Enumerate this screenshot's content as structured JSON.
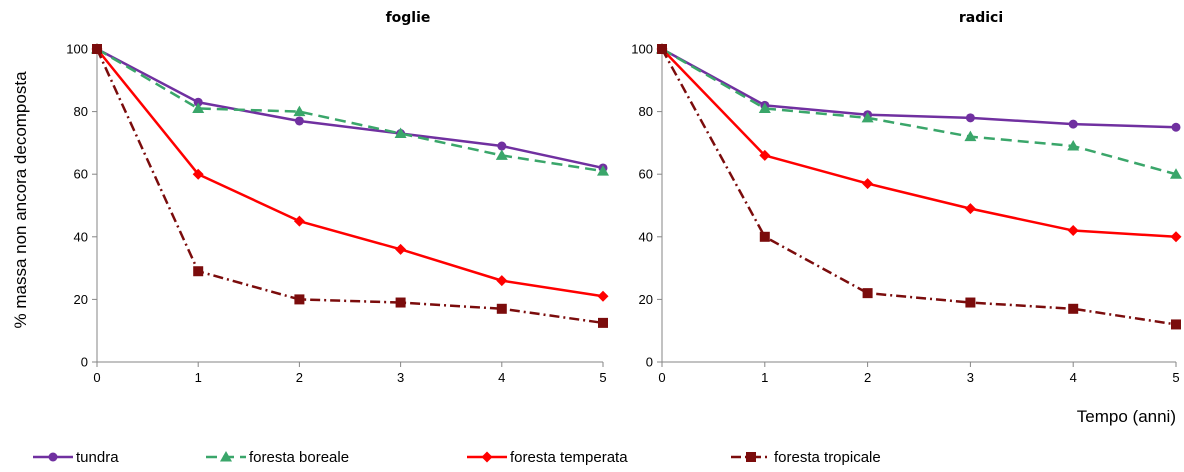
{
  "chart_data": {
    "type": "line",
    "ylabel": "% massa non ancora decomposta",
    "xlabel": "Tempo (anni)",
    "x": [
      0,
      1,
      2,
      3,
      4,
      5
    ],
    "xlim": [
      0,
      5
    ],
    "ylim": [
      0,
      100
    ],
    "y_ticks": [
      0,
      20,
      40,
      60,
      80,
      100
    ],
    "grid": false,
    "legend_position": "bottom",
    "series_styles": [
      {
        "name": "tundra",
        "color": "#7030a0",
        "marker": "circle",
        "dash": "solid"
      },
      {
        "name": "foresta boreale",
        "color": "#3aa66a",
        "marker": "triangle",
        "dash": "dashed"
      },
      {
        "name": "foresta temperata",
        "color": "#ff0000",
        "marker": "diamond",
        "dash": "solid"
      },
      {
        "name": "foresta tropicale",
        "color": "#7b0c0c",
        "marker": "square",
        "dash": "dashdot"
      }
    ],
    "panels": [
      {
        "title": "foglie",
        "series": [
          {
            "name": "tundra",
            "values": [
              100,
              83,
              77,
              73,
              69,
              62
            ]
          },
          {
            "name": "foresta boreale",
            "values": [
              100,
              81,
              80,
              73,
              66,
              61
            ]
          },
          {
            "name": "foresta temperata",
            "values": [
              100,
              60,
              45,
              36,
              26,
              21
            ]
          },
          {
            "name": "foresta tropicale",
            "values": [
              100,
              29,
              20,
              19,
              17,
              12.5
            ]
          }
        ]
      },
      {
        "title": "radici",
        "series": [
          {
            "name": "tundra",
            "values": [
              100,
              82,
              79,
              78,
              76,
              75
            ]
          },
          {
            "name": "foresta boreale",
            "values": [
              100,
              81,
              78,
              72,
              69,
              60
            ]
          },
          {
            "name": "foresta temperata",
            "values": [
              100,
              66,
              57,
              49,
              42,
              40
            ]
          },
          {
            "name": "foresta tropicale",
            "values": [
              100,
              40,
              22,
              19,
              17,
              12
            ]
          }
        ]
      }
    ]
  }
}
